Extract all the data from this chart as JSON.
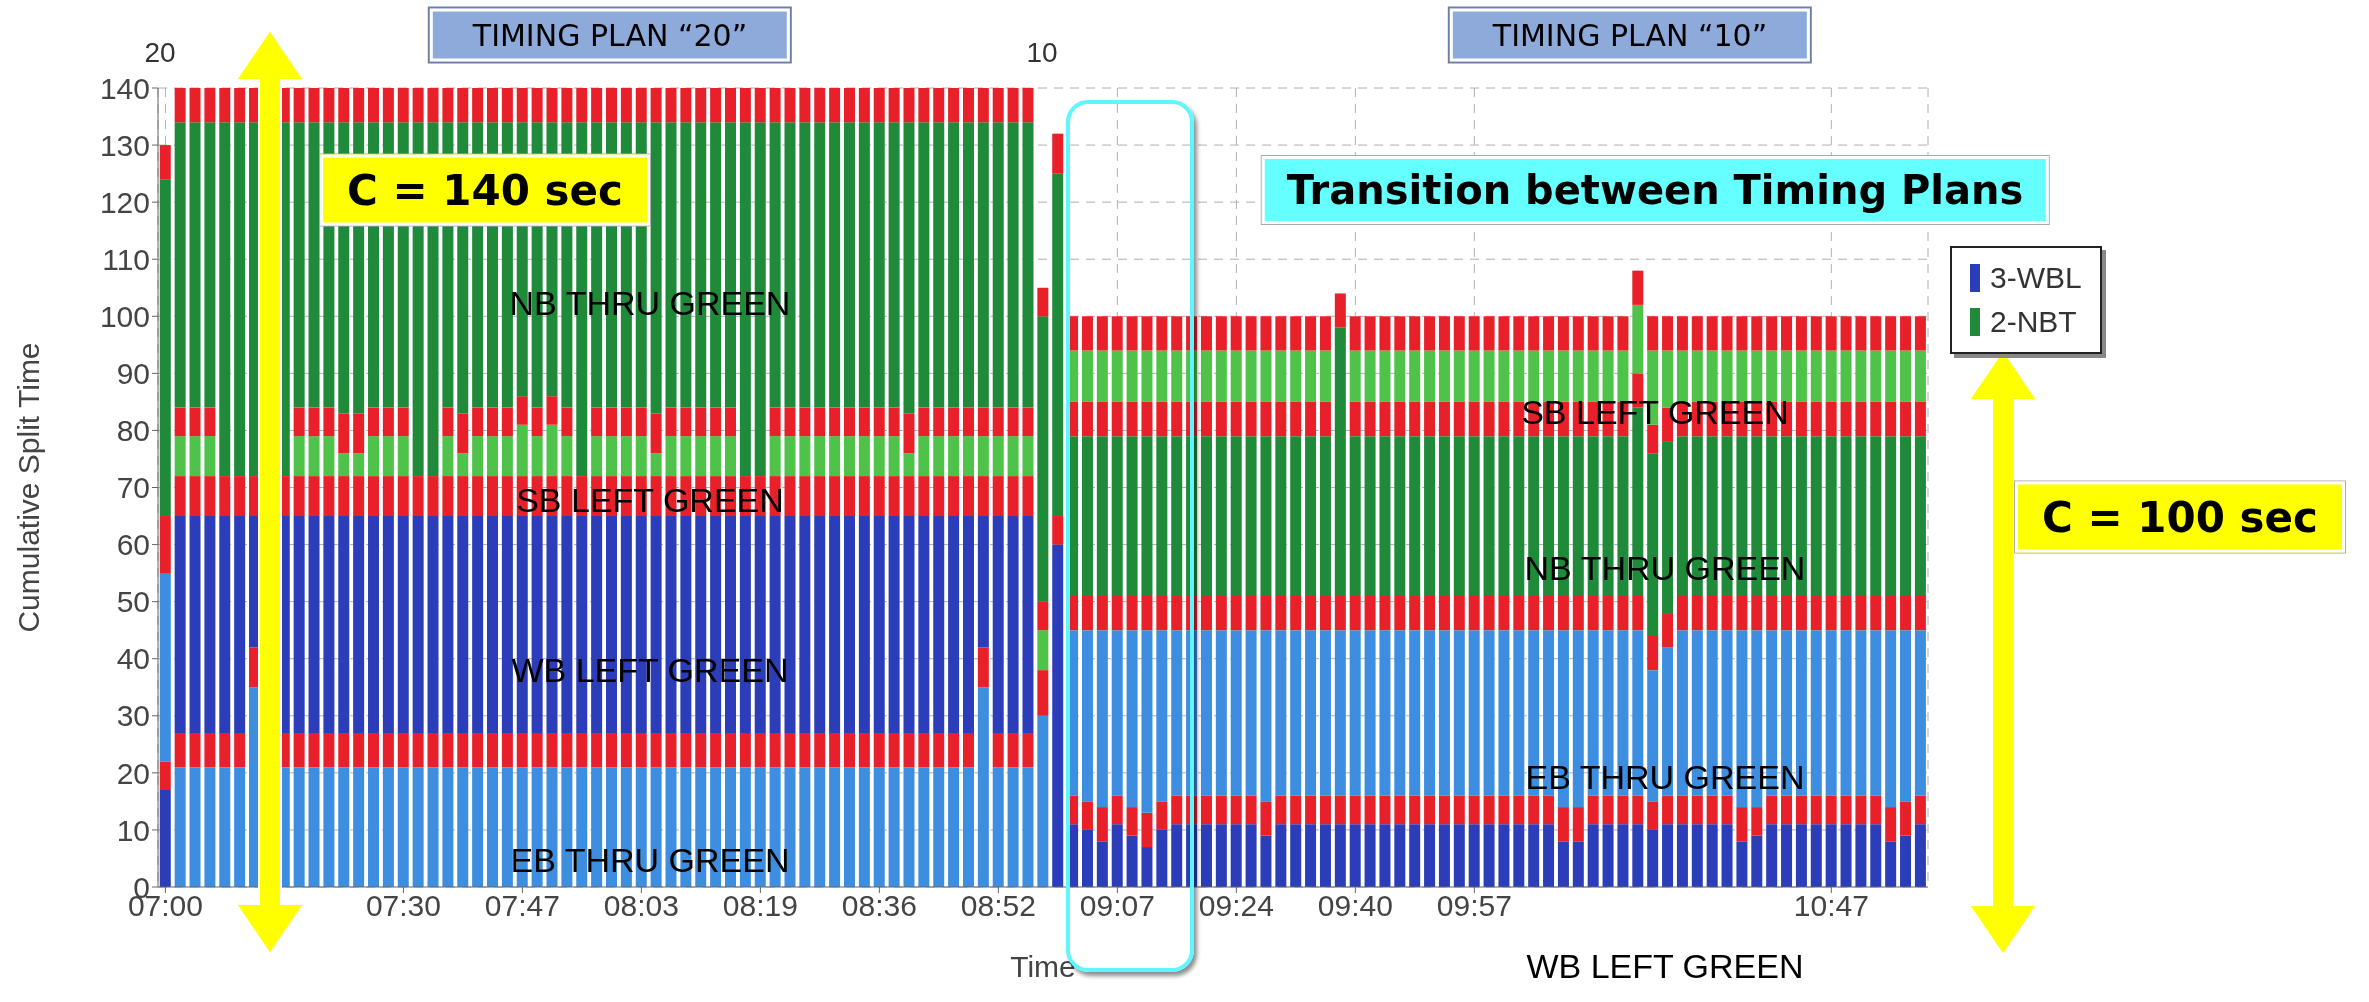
{
  "chart_data": {
    "type": "bar",
    "stacked": true,
    "xlabel": "Time",
    "ylabel": "Cumulative Split Time",
    "categories": [
      "07:00",
      null,
      null,
      null,
      null,
      null,
      null,
      null,
      null,
      null,
      null,
      null,
      null,
      null,
      null,
      null,
      "07:30",
      null,
      null,
      null,
      null,
      null,
      null,
      null,
      "07:47",
      null,
      null,
      null,
      null,
      null,
      null,
      null,
      "08:03",
      null,
      null,
      null,
      null,
      null,
      null,
      null,
      "08:19",
      null,
      null,
      null,
      null,
      null,
      null,
      null,
      "08:36",
      null,
      null,
      null,
      null,
      null,
      null,
      null,
      "08:52",
      null,
      null,
      null,
      null,
      null,
      null,
      null,
      "09:07",
      null,
      null,
      null,
      null,
      null,
      null,
      null,
      "09:24",
      null,
      null,
      null,
      null,
      null,
      null,
      null,
      "09:40",
      null,
      null,
      null,
      null,
      null,
      null,
      null,
      "09:57",
      null,
      null,
      null,
      null,
      null,
      null,
      null,
      null,
      null,
      null,
      null,
      null,
      null,
      null,
      null,
      null,
      null,
      null,
      null,
      null,
      null,
      null,
      null,
      "10:47",
      null,
      null,
      null,
      null,
      null,
      null
    ],
    "ylim": [
      0,
      140
    ],
    "yticks": [
      0,
      10,
      20,
      30,
      40,
      50,
      60,
      70,
      80,
      90,
      100,
      110,
      120,
      130,
      140
    ],
    "grid": true,
    "legend": "top right",
    "series": [
      {
        "color": "#3d8ee0",
        "values": [
          null,
          21,
          21,
          21,
          21,
          21,
          35,
          null,
          21,
          21,
          21,
          21,
          21,
          21,
          21,
          21,
          21,
          21,
          21,
          21,
          21,
          21,
          21,
          21,
          21,
          21,
          21,
          21,
          21,
          21,
          21,
          21,
          21,
          21,
          21,
          21,
          21,
          21,
          21,
          21,
          21,
          21,
          21,
          21,
          21,
          21,
          21,
          21,
          21,
          21,
          21,
          21,
          21,
          21,
          21,
          35,
          21,
          21,
          21,
          30,
          0,
          null,
          null,
          null,
          null,
          null,
          null,
          null,
          null,
          null,
          null,
          null,
          null,
          null,
          null,
          null,
          null,
          null,
          null,
          null,
          null,
          null,
          null,
          null,
          null,
          null,
          null,
          null,
          null,
          null,
          null,
          null,
          null,
          null,
          null,
          null,
          null,
          null,
          null,
          null,
          null,
          null,
          null,
          null,
          null,
          null,
          null,
          null,
          null,
          null,
          null,
          null,
          null,
          null,
          null,
          null,
          null,
          null,
          null
        ]
      },
      {
        "color": "#e8202a",
        "values": [
          null,
          6,
          6,
          6,
          6,
          6,
          7,
          null,
          6,
          6,
          6,
          6,
          6,
          6,
          6,
          6,
          6,
          6,
          6,
          6,
          6,
          6,
          6,
          6,
          6,
          6,
          6,
          6,
          6,
          6,
          6,
          6,
          6,
          6,
          6,
          6,
          6,
          6,
          6,
          6,
          6,
          6,
          6,
          6,
          6,
          6,
          6,
          6,
          6,
          6,
          6,
          6,
          6,
          6,
          6,
          7,
          6,
          6,
          6,
          8,
          0,
          null,
          null,
          null,
          null,
          null,
          null,
          null,
          null,
          null,
          null,
          null,
          null,
          null,
          null,
          null,
          null,
          null,
          null,
          null,
          null,
          null,
          null,
          null,
          null,
          null,
          null,
          null,
          null,
          null,
          null,
          null,
          null,
          null,
          null,
          null,
          null,
          null,
          null,
          null,
          null,
          null,
          null,
          null,
          null,
          null,
          null,
          null,
          null,
          null,
          null,
          null,
          null,
          null,
          null,
          null,
          null,
          null,
          null
        ]
      },
      {
        "name": "3-WBL",
        "color": "#2b3db8",
        "values": [
          null,
          38,
          38,
          38,
          38,
          38,
          23,
          null,
          38,
          38,
          38,
          38,
          38,
          38,
          38,
          38,
          38,
          38,
          38,
          38,
          38,
          38,
          38,
          38,
          38,
          38,
          38,
          38,
          38,
          38,
          38,
          38,
          38,
          38,
          38,
          38,
          38,
          38,
          38,
          38,
          38,
          38,
          38,
          38,
          38,
          38,
          38,
          38,
          38,
          38,
          38,
          38,
          38,
          38,
          38,
          23,
          38,
          38,
          38,
          0,
          60,
          null,
          null,
          null,
          null,
          null,
          null,
          null,
          null,
          null,
          null,
          null,
          null,
          null,
          null,
          null,
          null,
          null,
          null,
          null,
          null,
          null,
          null,
          null,
          null,
          null,
          null,
          null,
          null,
          null,
          null,
          null,
          null,
          null,
          null,
          null,
          null,
          null,
          null,
          null,
          null,
          null,
          null,
          null,
          null,
          null,
          null,
          null,
          null,
          null,
          null,
          null,
          null,
          null,
          null,
          null,
          null,
          null,
          null
        ]
      },
      {
        "color": "#e8202a",
        "values": [
          null,
          7,
          7,
          7,
          7,
          7,
          7,
          null,
          7,
          7,
          7,
          7,
          7,
          7,
          7,
          7,
          7,
          7,
          7,
          7,
          7,
          7,
          7,
          7,
          7,
          7,
          7,
          7,
          7,
          7,
          7,
          7,
          7,
          7,
          7,
          7,
          7,
          7,
          7,
          7,
          7,
          7,
          7,
          7,
          7,
          7,
          7,
          7,
          7,
          7,
          7,
          7,
          7,
          7,
          7,
          7,
          7,
          7,
          7,
          0,
          5,
          null,
          null,
          null,
          null,
          null,
          null,
          null,
          null,
          null,
          null,
          null,
          null,
          null,
          null,
          null,
          null,
          null,
          null,
          null,
          null,
          null,
          null,
          null,
          null,
          null,
          null,
          null,
          null,
          null,
          null,
          null,
          null,
          null,
          null,
          null,
          null,
          null,
          null,
          null,
          null,
          null,
          null,
          null,
          null,
          null,
          null,
          null,
          null,
          null,
          null,
          null,
          null,
          null,
          null,
          null,
          null,
          null,
          null
        ]
      },
      {
        "color": "#4fc24a",
        "values": [
          null,
          7,
          7,
          7,
          0,
          0,
          0,
          null,
          0,
          7,
          7,
          7,
          4,
          4,
          7,
          7,
          7,
          0,
          0,
          7,
          4,
          7,
          7,
          7,
          9,
          7,
          9,
          7,
          0,
          7,
          7,
          7,
          7,
          4,
          7,
          7,
          7,
          7,
          7,
          0,
          0,
          7,
          7,
          7,
          7,
          7,
          7,
          7,
          7,
          7,
          4,
          7,
          7,
          7,
          7,
          7,
          7,
          7,
          7,
          7,
          0,
          null,
          null,
          null,
          null,
          null,
          null,
          null,
          null,
          null,
          null,
          null,
          null,
          null,
          null,
          null,
          null,
          null,
          null,
          null,
          null,
          null,
          null,
          null,
          null,
          null,
          null,
          null,
          null,
          null,
          null,
          null,
          null,
          null,
          null,
          null,
          null,
          null,
          null,
          null,
          null,
          null,
          null,
          null,
          null,
          null,
          null,
          null,
          null,
          null,
          null,
          null,
          null,
          null,
          null,
          null,
          null,
          null,
          null
        ]
      },
      {
        "color": "#e8202a",
        "values": [
          null,
          5,
          5,
          5,
          0,
          0,
          0,
          null,
          0,
          5,
          5,
          5,
          7,
          7,
          5,
          5,
          5,
          0,
          0,
          5,
          7,
          5,
          5,
          5,
          5,
          5,
          5,
          5,
          0,
          5,
          5,
          5,
          5,
          7,
          5,
          5,
          5,
          5,
          5,
          0,
          0,
          5,
          5,
          5,
          5,
          5,
          5,
          5,
          5,
          5,
          7,
          5,
          5,
          5,
          5,
          5,
          5,
          5,
          5,
          5,
          0,
          null,
          null,
          null,
          null,
          null,
          null,
          null,
          null,
          null,
          null,
          null,
          null,
          null,
          null,
          null,
          null,
          null,
          null,
          null,
          null,
          null,
          null,
          null,
          null,
          null,
          null,
          null,
          null,
          null,
          null,
          null,
          null,
          null,
          null,
          null,
          null,
          null,
          null,
          null,
          null,
          null,
          null,
          null,
          null,
          null,
          null,
          null,
          null,
          null,
          null,
          null,
          null,
          null,
          null,
          null,
          null,
          null,
          null
        ]
      },
      {
        "name": "2-NBT",
        "color": "#1e8a3a",
        "values": [
          null,
          50,
          50,
          50,
          62,
          62,
          62,
          null,
          62,
          50,
          50,
          50,
          51,
          51,
          50,
          50,
          50,
          62,
          62,
          50,
          51,
          50,
          50,
          50,
          48,
          50,
          48,
          50,
          62,
          50,
          50,
          50,
          50,
          51,
          50,
          50,
          50,
          50,
          50,
          62,
          62,
          50,
          50,
          50,
          50,
          50,
          50,
          50,
          50,
          50,
          51,
          50,
          50,
          50,
          50,
          50,
          50,
          50,
          50,
          50,
          60,
          null,
          null,
          null,
          null,
          null,
          null,
          null,
          null,
          null,
          null,
          null,
          null,
          null,
          null,
          null,
          null,
          null,
          null,
          null,
          null,
          null,
          null,
          null,
          null,
          null,
          null,
          null,
          null,
          null,
          null,
          null,
          null,
          null,
          null,
          null,
          null,
          null,
          null,
          null,
          null,
          null,
          null,
          null,
          null,
          null,
          null,
          null,
          null,
          null,
          null,
          null,
          null,
          null,
          null,
          null,
          null,
          null,
          null
        ]
      },
      {
        "color": "#e8202a",
        "values": [
          null,
          6,
          6,
          6,
          6,
          6,
          6,
          null,
          6,
          6,
          6,
          6,
          6,
          6,
          6,
          6,
          6,
          6,
          6,
          6,
          6,
          6,
          6,
          6,
          6,
          6,
          6,
          6,
          6,
          6,
          6,
          6,
          6,
          6,
          6,
          6,
          6,
          6,
          6,
          6,
          6,
          6,
          6,
          6,
          6,
          6,
          6,
          6,
          6,
          6,
          6,
          6,
          6,
          6,
          6,
          6,
          6,
          6,
          6,
          5,
          7,
          null,
          null,
          null,
          null,
          null,
          null,
          null,
          null,
          null,
          null,
          null,
          null,
          null,
          null,
          null,
          null,
          null,
          null,
          null,
          null,
          null,
          null,
          null,
          null,
          null,
          null,
          null,
          null,
          null,
          null,
          null,
          null,
          null,
          null,
          null,
          null,
          null,
          null,
          null,
          null,
          null,
          null,
          null,
          null,
          null,
          null,
          null,
          null,
          null,
          null,
          null,
          null,
          null,
          null,
          null,
          null,
          null,
          null
        ]
      },
      {
        "color": "#2b3db8",
        "values": [
          17,
          null,
          null,
          null,
          null,
          null,
          null,
          null,
          null,
          null,
          null,
          null,
          null,
          null,
          null,
          null,
          null,
          null,
          null,
          null,
          null,
          null,
          null,
          null,
          null,
          null,
          null,
          null,
          null,
          null,
          null,
          null,
          null,
          null,
          null,
          null,
          null,
          null,
          null,
          null,
          null,
          null,
          null,
          null,
          null,
          null,
          null,
          null,
          null,
          null,
          null,
          null,
          null,
          null,
          null,
          null,
          null,
          null,
          null,
          null,
          null,
          11,
          10,
          8,
          11,
          9,
          7,
          10,
          11,
          11,
          11,
          11,
          11,
          11,
          9,
          11,
          11,
          11,
          11,
          11,
          11,
          11,
          11,
          11,
          11,
          11,
          11,
          11,
          11,
          11,
          11,
          11,
          11,
          11,
          8,
          8,
          11,
          11,
          11,
          11,
          10,
          11,
          11,
          11,
          11,
          11,
          8,
          9,
          11,
          11,
          11,
          11,
          11,
          11,
          11,
          11,
          8,
          9,
          11
        ]
      },
      {
        "color": "#e8202a",
        "values": [
          5,
          null,
          null,
          null,
          null,
          null,
          null,
          null,
          null,
          null,
          null,
          null,
          null,
          null,
          null,
          null,
          null,
          null,
          null,
          null,
          null,
          null,
          null,
          null,
          null,
          null,
          null,
          null,
          null,
          null,
          null,
          null,
          null,
          null,
          null,
          null,
          null,
          null,
          null,
          null,
          null,
          null,
          null,
          null,
          null,
          null,
          null,
          null,
          null,
          null,
          null,
          null,
          null,
          null,
          null,
          null,
          null,
          null,
          null,
          null,
          null,
          5,
          5,
          6,
          5,
          5,
          6,
          5,
          5,
          5,
          5,
          5,
          5,
          5,
          6,
          5,
          5,
          5,
          5,
          5,
          5,
          5,
          5,
          5,
          5,
          5,
          5,
          5,
          5,
          5,
          5,
          5,
          5,
          5,
          6,
          6,
          5,
          5,
          5,
          5,
          5,
          5,
          5,
          5,
          5,
          5,
          6,
          5,
          5,
          5,
          5,
          5,
          5,
          5,
          5,
          5,
          6,
          6,
          5
        ]
      },
      {
        "color": "#3d8ee0",
        "values": [
          33,
          null,
          null,
          null,
          null,
          null,
          null,
          null,
          null,
          null,
          null,
          null,
          null,
          null,
          null,
          null,
          null,
          null,
          null,
          null,
          null,
          null,
          null,
          null,
          null,
          null,
          null,
          null,
          null,
          null,
          null,
          null,
          null,
          null,
          null,
          null,
          null,
          null,
          null,
          null,
          null,
          null,
          null,
          null,
          null,
          null,
          null,
          null,
          null,
          null,
          null,
          null,
          null,
          null,
          null,
          null,
          null,
          null,
          null,
          null,
          null,
          29,
          30,
          31,
          29,
          31,
          32,
          30,
          29,
          29,
          29,
          29,
          29,
          29,
          30,
          29,
          29,
          29,
          29,
          29,
          29,
          29,
          29,
          29,
          29,
          29,
          29,
          29,
          29,
          29,
          29,
          29,
          29,
          29,
          31,
          31,
          29,
          29,
          29,
          29,
          23,
          26,
          29,
          29,
          29,
          29,
          31,
          31,
          29,
          29,
          29,
          29,
          29,
          29,
          29,
          29,
          31,
          30,
          29
        ]
      },
      {
        "color": "#e8202a",
        "values": [
          10,
          null,
          null,
          null,
          null,
          null,
          null,
          null,
          null,
          null,
          null,
          null,
          null,
          null,
          null,
          null,
          null,
          null,
          null,
          null,
          null,
          null,
          null,
          null,
          null,
          null,
          null,
          null,
          null,
          null,
          null,
          null,
          null,
          null,
          null,
          null,
          null,
          null,
          null,
          null,
          null,
          null,
          null,
          null,
          null,
          null,
          null,
          null,
          null,
          null,
          null,
          null,
          null,
          null,
          null,
          null,
          null,
          null,
          null,
          null,
          null,
          6,
          6,
          6,
          6,
          6,
          6,
          6,
          6,
          6,
          6,
          6,
          6,
          6,
          6,
          6,
          6,
          6,
          6,
          6,
          6,
          6,
          6,
          6,
          6,
          6,
          6,
          6,
          6,
          6,
          6,
          6,
          6,
          6,
          6,
          6,
          6,
          6,
          6,
          6,
          6,
          6,
          6,
          6,
          6,
          6,
          6,
          6,
          6,
          6,
          6,
          6,
          6,
          6,
          6,
          6,
          6,
          6,
          6
        ]
      },
      {
        "color": "#1e8a3a",
        "values": [
          59,
          null,
          null,
          null,
          null,
          null,
          null,
          null,
          null,
          null,
          null,
          null,
          null,
          null,
          null,
          null,
          null,
          null,
          null,
          null,
          null,
          null,
          null,
          null,
          null,
          null,
          null,
          null,
          null,
          null,
          null,
          null,
          null,
          null,
          null,
          null,
          null,
          null,
          null,
          null,
          null,
          null,
          null,
          null,
          null,
          null,
          null,
          null,
          null,
          null,
          null,
          null,
          null,
          null,
          null,
          null,
          null,
          null,
          null,
          null,
          null,
          28,
          28,
          28,
          28,
          28,
          28,
          28,
          28,
          28,
          28,
          28,
          28,
          28,
          28,
          28,
          28,
          28,
          28,
          47,
          28,
          28,
          28,
          28,
          28,
          28,
          28,
          28,
          28,
          28,
          28,
          28,
          28,
          28,
          28,
          28,
          28,
          28,
          28,
          33,
          32,
          30,
          28,
          28,
          28,
          28,
          28,
          28,
          28,
          28,
          28,
          28,
          28,
          28,
          28,
          28,
          28,
          28,
          28
        ]
      },
      {
        "color": "#e8202a",
        "values": [
          6,
          null,
          null,
          null,
          null,
          null,
          null,
          null,
          null,
          null,
          null,
          null,
          null,
          null,
          null,
          null,
          null,
          null,
          null,
          null,
          null,
          null,
          null,
          null,
          null,
          null,
          null,
          null,
          null,
          null,
          null,
          null,
          null,
          null,
          null,
          null,
          null,
          null,
          null,
          null,
          null,
          null,
          null,
          null,
          null,
          null,
          null,
          null,
          null,
          null,
          null,
          null,
          null,
          null,
          null,
          null,
          null,
          null,
          null,
          null,
          null,
          6,
          6,
          6,
          6,
          6,
          6,
          6,
          6,
          6,
          6,
          6,
          6,
          6,
          6,
          6,
          6,
          6,
          6,
          6,
          6,
          6,
          6,
          6,
          6,
          6,
          6,
          6,
          6,
          6,
          6,
          6,
          6,
          6,
          6,
          6,
          6,
          6,
          6,
          6,
          5,
          6,
          6,
          6,
          6,
          6,
          6,
          6,
          6,
          6,
          6,
          6,
          6,
          6,
          6,
          6,
          6,
          6,
          6
        ]
      },
      {
        "color": "#4fc24a",
        "values": [
          0,
          null,
          null,
          null,
          null,
          null,
          null,
          null,
          null,
          null,
          null,
          null,
          null,
          null,
          null,
          null,
          null,
          null,
          null,
          null,
          null,
          null,
          null,
          null,
          null,
          null,
          null,
          null,
          null,
          null,
          null,
          null,
          null,
          null,
          null,
          null,
          null,
          null,
          null,
          null,
          null,
          null,
          null,
          null,
          null,
          null,
          null,
          null,
          null,
          null,
          null,
          null,
          null,
          null,
          null,
          null,
          null,
          null,
          null,
          null,
          null,
          9,
          9,
          9,
          9,
          9,
          9,
          9,
          9,
          9,
          9,
          9,
          9,
          9,
          9,
          9,
          9,
          9,
          9,
          0,
          9,
          9,
          9,
          9,
          9,
          9,
          9,
          9,
          9,
          9,
          9,
          9,
          9,
          9,
          9,
          9,
          9,
          9,
          9,
          12,
          13,
          10,
          9,
          9,
          9,
          9,
          9,
          9,
          9,
          9,
          9,
          9,
          9,
          9,
          9,
          9,
          9,
          9,
          9
        ]
      },
      {
        "color": "#e8202a",
        "values": [
          0,
          null,
          null,
          null,
          null,
          null,
          null,
          null,
          null,
          null,
          null,
          null,
          null,
          null,
          null,
          null,
          null,
          null,
          null,
          null,
          null,
          null,
          null,
          null,
          null,
          null,
          null,
          null,
          null,
          null,
          null,
          null,
          null,
          null,
          null,
          null,
          null,
          null,
          null,
          null,
          null,
          null,
          null,
          null,
          null,
          null,
          null,
          null,
          null,
          null,
          null,
          null,
          null,
          null,
          null,
          null,
          null,
          null,
          null,
          null,
          null,
          6,
          6,
          6,
          6,
          6,
          6,
          6,
          6,
          6,
          6,
          6,
          6,
          6,
          6,
          6,
          6,
          6,
          6,
          0,
          6,
          6,
          6,
          6,
          6,
          6,
          6,
          6,
          6,
          6,
          6,
          6,
          6,
          6,
          6,
          6,
          6,
          6,
          6,
          6,
          6,
          6,
          6,
          6,
          6,
          6,
          6,
          6,
          6,
          6,
          6,
          6,
          6,
          6,
          6,
          6,
          6,
          6,
          6
        ]
      }
    ],
    "annotations": [
      "TIMING PLAN “20”",
      "TIMING PLAN “10”",
      "C = 140 sec",
      "Transition between Timing Plans",
      "C = 100 sec",
      "NB THRU GREEN",
      "SB LEFT GREEN",
      "WB LEFT GREEN",
      "EB THRU GREEN",
      "SB LEFT GREEN",
      "NB THRU GREEN",
      "EB THRU GREEN",
      "WB LEFT GREEN",
      "20",
      "10"
    ]
  }
}
